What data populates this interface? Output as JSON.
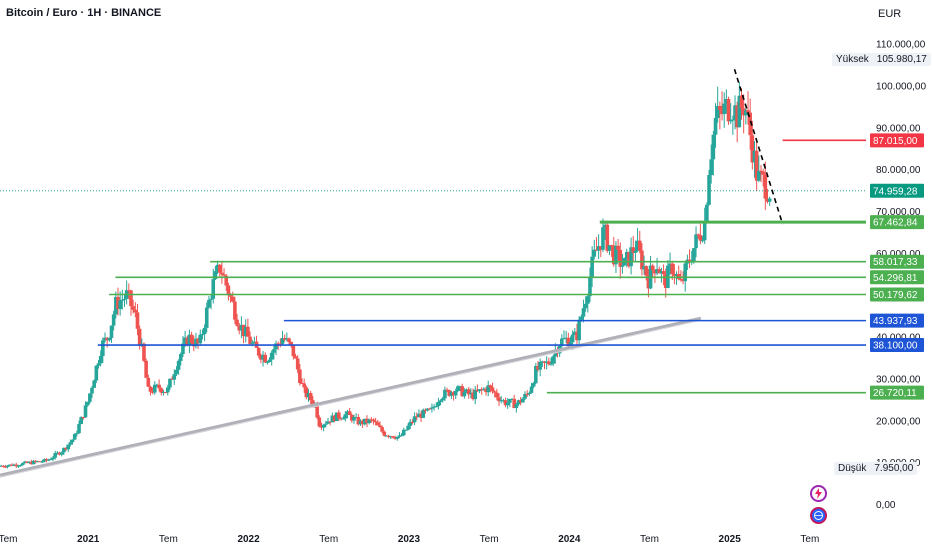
{
  "header": {
    "title": "Bitcoin / Euro · 1H · BINANCE",
    "currency": "EUR"
  },
  "stats": {
    "high_label": "Yüksek",
    "high_value": "105.980,17",
    "low_label": "Düşük",
    "low_value": "7.950,00"
  },
  "icons": {
    "top": "lightning-icon",
    "bottom": "globe-icon"
  },
  "colors": {
    "up": "#26a69a",
    "down": "#ef5350",
    "green_line": "#4caf50",
    "blue_line": "#1e54d6",
    "red_line": "#f23645",
    "trend_line": "#b0b0b8",
    "current_label": "#089981"
  },
  "chart_data": {
    "type": "candlestick",
    "y_axis": {
      "ticks": [
        0,
        10000,
        20000,
        30000,
        40000,
        50000,
        60000,
        70000,
        80000,
        90000,
        100000,
        110000
      ],
      "tick_labels": [
        "0,00",
        "10.000,00",
        "20.000,00",
        "30.000,00",
        "40.000,00",
        "50.000,00",
        "60.000,00",
        "70.000,00",
        "80.000,00",
        "90.000,00",
        "100.000,00",
        "110.000,00"
      ]
    },
    "x_axis": {
      "range": [
        2020.45,
        2025.85
      ],
      "ticks": [
        {
          "x": 2020.5,
          "label": "Tem",
          "bold": false
        },
        {
          "x": 2021.0,
          "label": "2021",
          "bold": true
        },
        {
          "x": 2021.5,
          "label": "Tem",
          "bold": false
        },
        {
          "x": 2022.0,
          "label": "2022",
          "bold": true
        },
        {
          "x": 2022.5,
          "label": "Tem",
          "bold": false
        },
        {
          "x": 2023.0,
          "label": "2023",
          "bold": true
        },
        {
          "x": 2023.5,
          "label": "Tem",
          "bold": false
        },
        {
          "x": 2024.0,
          "label": "2024",
          "bold": true
        },
        {
          "x": 2024.5,
          "label": "Tem",
          "bold": false
        },
        {
          "x": 2025.0,
          "label": "2025",
          "bold": true
        },
        {
          "x": 2025.5,
          "label": "Tem",
          "bold": false
        }
      ]
    },
    "price_path": [
      [
        2020.45,
        9200
      ],
      [
        2020.55,
        9500
      ],
      [
        2020.65,
        10000
      ],
      [
        2020.75,
        10500
      ],
      [
        2020.85,
        13000
      ],
      [
        2020.92,
        16000
      ],
      [
        2021.0,
        24000
      ],
      [
        2021.04,
        30000
      ],
      [
        2021.09,
        38000
      ],
      [
        2021.13,
        40000
      ],
      [
        2021.18,
        48000
      ],
      [
        2021.25,
        50000
      ],
      [
        2021.3,
        45000
      ],
      [
        2021.35,
        35000
      ],
      [
        2021.38,
        27000
      ],
      [
        2021.45,
        28000
      ],
      [
        2021.5,
        27000
      ],
      [
        2021.55,
        33000
      ],
      [
        2021.63,
        40000
      ],
      [
        2021.7,
        38000
      ],
      [
        2021.78,
        52000
      ],
      [
        2021.83,
        57000
      ],
      [
        2021.88,
        51000
      ],
      [
        2021.95,
        43000
      ],
      [
        2022.05,
        37000
      ],
      [
        2022.12,
        35000
      ],
      [
        2022.22,
        40000
      ],
      [
        2022.28,
        37000
      ],
      [
        2022.35,
        27000
      ],
      [
        2022.42,
        24000
      ],
      [
        2022.45,
        19000
      ],
      [
        2022.55,
        21000
      ],
      [
        2022.62,
        21500
      ],
      [
        2022.7,
        19500
      ],
      [
        2022.78,
        20000
      ],
      [
        2022.85,
        17000
      ],
      [
        2022.95,
        16000
      ],
      [
        2023.05,
        21000
      ],
      [
        2023.15,
        22500
      ],
      [
        2023.2,
        26000
      ],
      [
        2023.3,
        27500
      ],
      [
        2023.4,
        26000
      ],
      [
        2023.5,
        28000
      ],
      [
        2023.6,
        24500
      ],
      [
        2023.68,
        24000
      ],
      [
        2023.75,
        26500
      ],
      [
        2023.8,
        32000
      ],
      [
        2023.88,
        34000
      ],
      [
        2023.95,
        39000
      ],
      [
        2024.05,
        40000
      ],
      [
        2024.1,
        48000
      ],
      [
        2024.16,
        59000
      ],
      [
        2024.22,
        65000
      ],
      [
        2024.28,
        60000
      ],
      [
        2024.35,
        57000
      ],
      [
        2024.42,
        62000
      ],
      [
        2024.5,
        54000
      ],
      [
        2024.55,
        58000
      ],
      [
        2024.6,
        53000
      ],
      [
        2024.65,
        57000
      ],
      [
        2024.7,
        52000
      ],
      [
        2024.75,
        58000
      ],
      [
        2024.8,
        63000
      ],
      [
        2024.85,
        67000
      ],
      [
        2024.88,
        82000
      ],
      [
        2024.92,
        92000
      ],
      [
        2024.97,
        94000
      ],
      [
        2025.02,
        96000
      ],
      [
        2025.05,
        93000
      ],
      [
        2025.1,
        96000
      ],
      [
        2025.15,
        85000
      ],
      [
        2025.18,
        78000
      ],
      [
        2025.22,
        77000
      ],
      [
        2025.25,
        75000
      ]
    ],
    "annotations": {
      "horizontal_levels": [
        {
          "value": "87.015,00",
          "price": 87015,
          "color": "red",
          "x_start": 2025.33
        },
        {
          "value": "67.462,84",
          "price": 67462.84,
          "color": "green",
          "x_start": 2024.19
        },
        {
          "value": "58.017,33",
          "price": 58017.33,
          "color": "green",
          "x_start": 2021.76
        },
        {
          "value": "54.296,81",
          "price": 54296.81,
          "color": "green",
          "x_start": 2021.17
        },
        {
          "value": "50.179,62",
          "price": 50179.62,
          "color": "green",
          "x_start": 2021.13
        },
        {
          "value": "43.937,93",
          "price": 43937.93,
          "color": "blue",
          "x_start": 2022.22
        },
        {
          "value": "38.100,00",
          "price": 38100,
          "color": "blue",
          "x_start": 2021.06
        },
        {
          "value": "26.720,11",
          "price": 26720.11,
          "color": "green",
          "x_start": 2023.86
        }
      ],
      "current_price": {
        "value": "74.959,28",
        "price": 74959.28
      },
      "trendline": {
        "from": [
          2020.45,
          7000
        ],
        "to": [
          2024.82,
          44500
        ]
      },
      "dashed_line": {
        "from": [
          2025.03,
          104000
        ],
        "to": [
          2025.33,
          67000
        ]
      }
    }
  }
}
